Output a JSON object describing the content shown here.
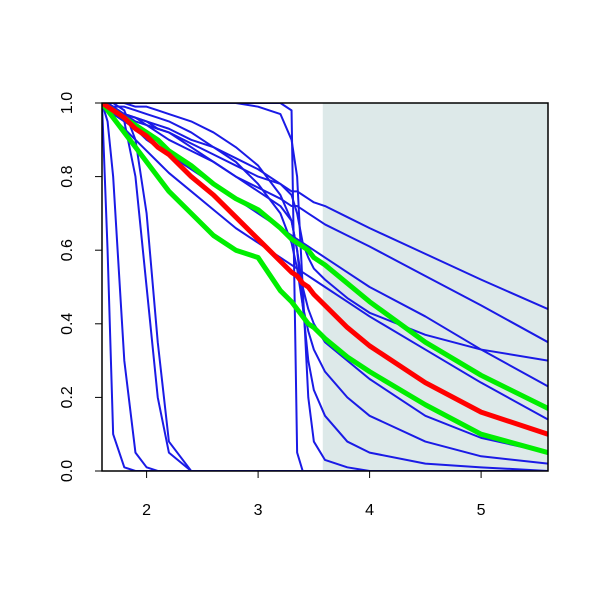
{
  "chart_data": {
    "type": "line",
    "xlim": [
      1.6,
      5.6
    ],
    "ylim": [
      0,
      1
    ],
    "xticks": [
      2,
      3,
      4,
      5
    ],
    "yticks": [
      {
        "value": 0,
        "label": "0.0"
      },
      {
        "value": 0.2,
        "label": "0.2"
      },
      {
        "value": 0.4,
        "label": "0.4"
      },
      {
        "value": 0.6,
        "label": "0.6"
      },
      {
        "value": 0.8,
        "label": "0.8"
      },
      {
        "value": 1,
        "label": "1.0"
      }
    ],
    "shaded_region": {
      "xlim": [
        3.58,
        5.6
      ],
      "color": "#dde9e9"
    },
    "x": [
      1.6,
      1.65,
      1.7,
      1.8,
      1.9,
      2.0,
      2.1,
      2.2,
      2.4,
      2.6,
      2.8,
      3.0,
      3.2,
      3.3,
      3.35,
      3.4,
      3.45,
      3.5,
      3.6,
      3.8,
      4.0,
      4.5,
      5.0,
      5.6
    ],
    "series": [
      {
        "color": "#1a1ae6",
        "linewidth": 2,
        "values": [
          1,
          0.99,
          0.99,
          0.97,
          0.96,
          0.94,
          0.93,
          0.92,
          0.89,
          0.86,
          0.83,
          0.8,
          0.78,
          0.76,
          0.76,
          0.75,
          0.74,
          0.73,
          0.72,
          0.69,
          0.66,
          0.59,
          0.52,
          0.44
        ]
      },
      {
        "color": "#1a1ae6",
        "linewidth": 2,
        "values": [
          1,
          0.99,
          0.98,
          0.97,
          0.95,
          0.94,
          0.92,
          0.9,
          0.87,
          0.84,
          0.8,
          0.77,
          0.74,
          0.72,
          0.72,
          0.71,
          0.7,
          0.69,
          0.67,
          0.64,
          0.61,
          0.53,
          0.45,
          0.35
        ]
      },
      {
        "color": "#1a1ae6",
        "linewidth": 2,
        "values": [
          1,
          0.99,
          0.98,
          0.97,
          0.96,
          0.95,
          0.94,
          0.93,
          0.9,
          0.88,
          0.85,
          0.82,
          0.78,
          0.75,
          0.7,
          0.62,
          0.58,
          0.55,
          0.52,
          0.47,
          0.43,
          0.37,
          0.33,
          0.3
        ]
      },
      {
        "color": "#1a1ae6",
        "linewidth": 2,
        "values": [
          1,
          0.99,
          0.97,
          0.95,
          0.93,
          0.9,
          0.88,
          0.86,
          0.82,
          0.78,
          0.74,
          0.7,
          0.66,
          0.64,
          0.63,
          0.62,
          0.61,
          0.6,
          0.58,
          0.54,
          0.5,
          0.42,
          0.33,
          0.23
        ]
      },
      {
        "color": "#1a1ae6",
        "linewidth": 2,
        "values": [
          1,
          0.98,
          0.96,
          0.93,
          0.9,
          0.87,
          0.84,
          0.81,
          0.76,
          0.71,
          0.66,
          0.62,
          0.58,
          0.56,
          0.55,
          0.54,
          0.53,
          0.52,
          0.5,
          0.46,
          0.42,
          0.33,
          0.24,
          0.14
        ]
      },
      {
        "color": "#1a1ae6",
        "linewidth": 2,
        "values": [
          1,
          0.6,
          0.1,
          0.01,
          0,
          0,
          0,
          0,
          0,
          0,
          0,
          0,
          0,
          0,
          0,
          0,
          0,
          0,
          0,
          0,
          0,
          0,
          0,
          0
        ]
      },
      {
        "color": "#1a1ae6",
        "linewidth": 2,
        "values": [
          1,
          0.95,
          0.8,
          0.3,
          0.05,
          0.01,
          0,
          0,
          0,
          0,
          0,
          0,
          0,
          0,
          0,
          0,
          0,
          0,
          0,
          0,
          0,
          0,
          0,
          0
        ]
      },
      {
        "color": "#1a1ae6",
        "linewidth": 2,
        "values": [
          1,
          1,
          0.99,
          0.95,
          0.8,
          0.5,
          0.2,
          0.05,
          0,
          0,
          0,
          0,
          0,
          0,
          0,
          0,
          0,
          0,
          0,
          0,
          0,
          0,
          0,
          0
        ]
      },
      {
        "color": "#1a1ae6",
        "linewidth": 2,
        "values": [
          1,
          1,
          1,
          0.98,
          0.9,
          0.7,
          0.35,
          0.08,
          0,
          0,
          0,
          0,
          0,
          0,
          0,
          0,
          0,
          0,
          0,
          0,
          0,
          0,
          0,
          0
        ]
      },
      {
        "color": "#1a1ae6",
        "linewidth": 2,
        "values": [
          1,
          1,
          1,
          1,
          1,
          1,
          1,
          1,
          1,
          1,
          1,
          1,
          1,
          0.98,
          0.05,
          0,
          0,
          0,
          0,
          0,
          0,
          0,
          0,
          0
        ]
      },
      {
        "color": "#1a1ae6",
        "linewidth": 2,
        "values": [
          1,
          1,
          1,
          1,
          1,
          1,
          1,
          1,
          1,
          1,
          1,
          0.99,
          0.97,
          0.9,
          0.8,
          0.5,
          0.2,
          0.08,
          0.03,
          0.01,
          0,
          0,
          0,
          0
        ]
      },
      {
        "color": "#1a1ae6",
        "linewidth": 2,
        "values": [
          1,
          1,
          1,
          1,
          0.99,
          0.99,
          0.98,
          0.97,
          0.95,
          0.92,
          0.88,
          0.83,
          0.75,
          0.68,
          0.6,
          0.45,
          0.3,
          0.22,
          0.15,
          0.08,
          0.05,
          0.02,
          0.01,
          0
        ]
      },
      {
        "color": "#1a1ae6",
        "linewidth": 2,
        "values": [
          1,
          1,
          0.99,
          0.99,
          0.98,
          0.97,
          0.96,
          0.95,
          0.92,
          0.88,
          0.84,
          0.78,
          0.7,
          0.62,
          0.55,
          0.45,
          0.38,
          0.33,
          0.27,
          0.2,
          0.15,
          0.08,
          0.04,
          0.02
        ]
      },
      {
        "color": "#1a1ae6",
        "linewidth": 2,
        "values": [
          1,
          0.99,
          0.98,
          0.97,
          0.96,
          0.95,
          0.93,
          0.92,
          0.88,
          0.84,
          0.8,
          0.76,
          0.72,
          0.68,
          0.6,
          0.5,
          0.44,
          0.4,
          0.35,
          0.3,
          0.25,
          0.15,
          0.09,
          0.05
        ]
      },
      {
        "color": "#00ee00",
        "linewidth": 5,
        "values": [
          1,
          0.99,
          0.98,
          0.96,
          0.94,
          0.92,
          0.9,
          0.87,
          0.83,
          0.78,
          0.74,
          0.71,
          0.66,
          0.63,
          0.62,
          0.61,
          0.6,
          0.58,
          0.56,
          0.51,
          0.46,
          0.35,
          0.26,
          0.17
        ]
      },
      {
        "color": "#00ee00",
        "linewidth": 5,
        "values": [
          1,
          0.98,
          0.96,
          0.92,
          0.88,
          0.84,
          0.8,
          0.76,
          0.7,
          0.64,
          0.6,
          0.58,
          0.49,
          0.46,
          0.44,
          0.42,
          0.4,
          0.39,
          0.36,
          0.31,
          0.27,
          0.18,
          0.1,
          0.05
        ]
      },
      {
        "color": "#ff0000",
        "linewidth": 5,
        "values": [
          1,
          0.99,
          0.98,
          0.96,
          0.93,
          0.91,
          0.88,
          0.86,
          0.8,
          0.75,
          0.69,
          0.63,
          0.57,
          0.54,
          0.53,
          0.51,
          0.5,
          0.48,
          0.45,
          0.39,
          0.34,
          0.24,
          0.16,
          0.1
        ]
      }
    ]
  }
}
